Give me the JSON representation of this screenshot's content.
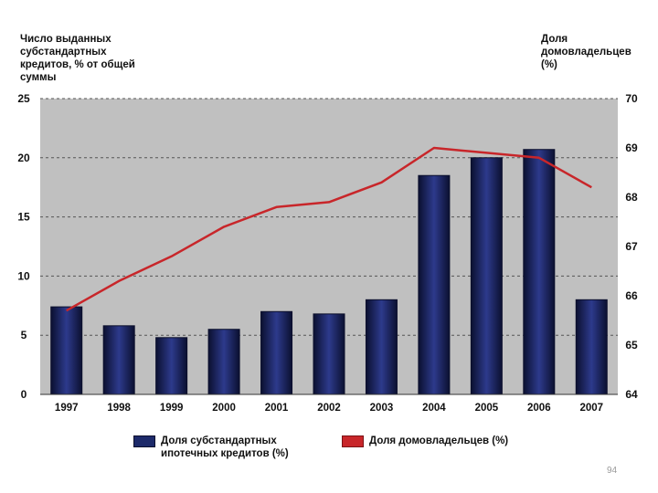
{
  "chart_data": {
    "type": "bar+line",
    "categories": [
      "1997",
      "1998",
      "1999",
      "2000",
      "2001",
      "2002",
      "2003",
      "2004",
      "2005",
      "2006",
      "2007"
    ],
    "series": [
      {
        "name": "Доля субстандартных ипотечных кредитов (%)",
        "type": "bar",
        "axis": "left",
        "color": "#1d2a6a",
        "values": [
          7.4,
          5.8,
          4.8,
          5.5,
          7.0,
          6.8,
          8.0,
          18.5,
          20.0,
          20.7,
          8.0
        ]
      },
      {
        "name": "Доля домовладельцев (%)",
        "type": "line",
        "axis": "right",
        "color": "#c8262a",
        "values": [
          65.7,
          66.3,
          66.8,
          67.4,
          67.8,
          67.9,
          68.3,
          69.0,
          68.9,
          68.8,
          68.2
        ]
      }
    ],
    "ylabel_left": "Число выданных\nсубстандартных\nкредитов, % от общей\nсуммы",
    "ylabel_right": "Доля\nдомовладельцев\n(%)",
    "ylim_left": [
      0,
      25
    ],
    "yticks_left": [
      0,
      5,
      10,
      15,
      20,
      25
    ],
    "ylim_right": [
      64,
      70
    ],
    "yticks_right": [
      64,
      65,
      66,
      67,
      68,
      69,
      70
    ],
    "grid": "dashed horizontal",
    "legend_position": "bottom"
  },
  "legend": {
    "bar_label": "Доля субстандартных\nипотечных кредитов (%)",
    "line_label": "Доля домовладельцев (%)"
  },
  "page_number": "94"
}
